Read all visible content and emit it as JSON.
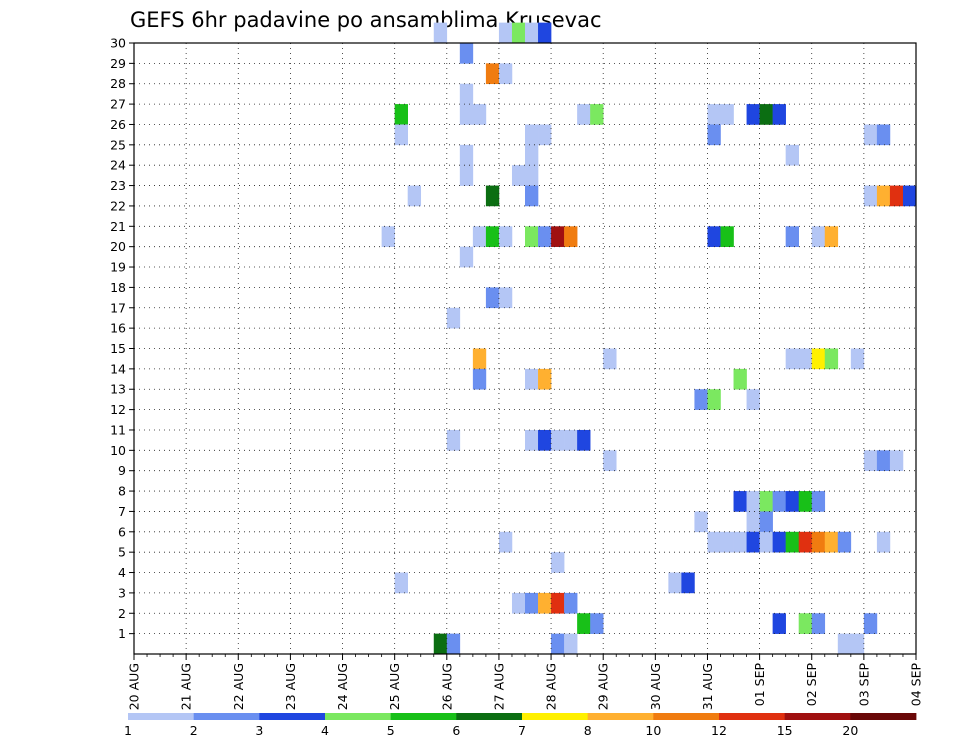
{
  "chart_data": {
    "type": "heatmap",
    "title": "GEFS 6hr padavine po ansamblima Krusevac",
    "xlabel": "",
    "ylabel": "",
    "x_tick_labels": [
      "20 AUG",
      "21 AUG",
      "22 AUG",
      "23 AUG",
      "24 AUG",
      "25 AUG",
      "26 AUG",
      "27 AUG",
      "28 AUG",
      "29 AUG",
      "30 AUG",
      "31 AUG",
      "01 SEP",
      "02 SEP",
      "03 SEP",
      "04 SEP"
    ],
    "y_tick_labels": [
      "1",
      "2",
      "3",
      "4",
      "5",
      "6",
      "7",
      "8",
      "9",
      "10",
      "11",
      "12",
      "13",
      "14",
      "15",
      "16",
      "17",
      "18",
      "19",
      "20",
      "21",
      "22",
      "23",
      "24",
      "25",
      "26",
      "27",
      "28",
      "29",
      "30"
    ],
    "time_steps_per_day": 4,
    "ensemble_members": 30,
    "grid": true,
    "colorbar": {
      "position": "bottom",
      "tick_labels": [
        "1",
        "2",
        "3",
        "4",
        "5",
        "6",
        "7",
        "8",
        "10",
        "12",
        "15",
        "20"
      ],
      "thresholds": [
        1,
        2,
        3,
        4,
        5,
        6,
        7,
        8,
        10,
        12,
        15,
        20
      ],
      "colors": [
        "#b4c6f5",
        "#6a8ff0",
        "#1f46e0",
        "#7be860",
        "#18c018",
        "#0b6e12",
        "#fff000",
        "#ffb030",
        "#f07c10",
        "#e03010",
        "#a01010",
        "#6a0808"
      ]
    },
    "cells": [
      {
        "date": "25 AUG 18Z",
        "member": 30,
        "value": 1.5
      },
      {
        "date": "27 AUG 00Z",
        "member": 30,
        "value": 1.5
      },
      {
        "date": "27 AUG 06Z",
        "member": 30,
        "value": 4.5
      },
      {
        "date": "27 AUG 12Z",
        "member": 30,
        "value": 1.5
      },
      {
        "date": "27 AUG 18Z",
        "member": 30,
        "value": 3.5
      },
      {
        "date": "26 AUG 06Z",
        "member": 29,
        "value": 2.5
      },
      {
        "date": "26 AUG 18Z",
        "member": 28,
        "value": 11
      },
      {
        "date": "27 AUG 00Z",
        "member": 28,
        "value": 1.5
      },
      {
        "date": "26 AUG 06Z",
        "member": 27,
        "value": 1.5
      },
      {
        "date": "26 AUG 06Z",
        "member": 26,
        "value": 1.5
      },
      {
        "date": "25 AUG 00Z",
        "member": 26,
        "value": 5.5
      },
      {
        "date": "26 AUG 12Z",
        "member": 26,
        "value": 1.5
      },
      {
        "date": "28 AUG 12Z",
        "member": 26,
        "value": 1.5
      },
      {
        "date": "28 AUG 18Z",
        "member": 26,
        "value": 4.5
      },
      {
        "date": "31 AUG 00Z",
        "member": 26,
        "value": 1.5
      },
      {
        "date": "31 AUG 06Z",
        "member": 26,
        "value": 1.5
      },
      {
        "date": "31 AUG 18Z",
        "member": 26,
        "value": 3.5
      },
      {
        "date": "01 SEP 00Z",
        "member": 26,
        "value": 6.5
      },
      {
        "date": "01 SEP 06Z",
        "member": 26,
        "value": 3.5
      },
      {
        "date": "25 AUG 00Z",
        "member": 25,
        "value": 1.5
      },
      {
        "date": "27 AUG 12Z",
        "member": 25,
        "value": 1.5
      },
      {
        "date": "27 AUG 18Z",
        "member": 25,
        "value": 1.5
      },
      {
        "date": "31 AUG 00Z",
        "member": 25,
        "value": 2.5
      },
      {
        "date": "03 SEP 00Z",
        "member": 25,
        "value": 1.5
      },
      {
        "date": "03 SEP 06Z",
        "member": 25,
        "value": 2.5
      },
      {
        "date": "26 AUG 06Z",
        "member": 24,
        "value": 1.5
      },
      {
        "date": "27 AUG 12Z",
        "member": 24,
        "value": 1.5
      },
      {
        "date": "01 SEP 12Z",
        "member": 24,
        "value": 1.5
      },
      {
        "date": "26 AUG 06Z",
        "member": 23,
        "value": 1.5
      },
      {
        "date": "27 AUG 06Z",
        "member": 23,
        "value": 1.5
      },
      {
        "date": "27 AUG 12Z",
        "member": 23,
        "value": 1.5
      },
      {
        "date": "25 AUG 06Z",
        "member": 22,
        "value": 1.5
      },
      {
        "date": "26 AUG 18Z",
        "member": 22,
        "value": 6.5
      },
      {
        "date": "27 AUG 12Z",
        "member": 22,
        "value": 2.5
      },
      {
        "date": "03 SEP 00Z",
        "member": 22,
        "value": 1.5
      },
      {
        "date": "03 SEP 06Z",
        "member": 22,
        "value": 9
      },
      {
        "date": "03 SEP 12Z",
        "member": 22,
        "value": 13
      },
      {
        "date": "03 SEP 18Z",
        "member": 22,
        "value": 3.5
      },
      {
        "date": "24 AUG 18Z",
        "member": 20,
        "value": 1.5
      },
      {
        "date": "26 AUG 12Z",
        "member": 20,
        "value": 1.5
      },
      {
        "date": "26 AUG 18Z",
        "member": 20,
        "value": 5.5
      },
      {
        "date": "27 AUG 00Z",
        "member": 20,
        "value": 1.5
      },
      {
        "date": "27 AUG 12Z",
        "member": 20,
        "value": 4.5
      },
      {
        "date": "27 AUG 18Z",
        "member": 20,
        "value": 2.5
      },
      {
        "date": "28 AUG 00Z",
        "member": 20,
        "value": 17
      },
      {
        "date": "28 AUG 06Z",
        "member": 20,
        "value": 11
      },
      {
        "date": "31 AUG 00Z",
        "member": 20,
        "value": 3.5
      },
      {
        "date": "31 AUG 06Z",
        "member": 20,
        "value": 5.5
      },
      {
        "date": "01 SEP 12Z",
        "member": 20,
        "value": 2.5
      },
      {
        "date": "02 SEP 00Z",
        "member": 20,
        "value": 1.5
      },
      {
        "date": "02 SEP 06Z",
        "member": 20,
        "value": 9
      },
      {
        "date": "26 AUG 06Z",
        "member": 19,
        "value": 1.5
      },
      {
        "date": "26 AUG 00Z",
        "member": 16,
        "value": 1.5
      },
      {
        "date": "26 AUG 18Z",
        "member": 17,
        "value": 2.5
      },
      {
        "date": "27 AUG 00Z",
        "member": 17,
        "value": 1.5
      },
      {
        "date": "26 AUG 12Z",
        "member": 14,
        "value": 9
      },
      {
        "date": "26 AUG 12Z",
        "member": 13,
        "value": 2.5
      },
      {
        "date": "27 AUG 12Z",
        "member": 13,
        "value": 1.5
      },
      {
        "date": "27 AUG 18Z",
        "member": 13,
        "value": 9
      },
      {
        "date": "29 AUG 00Z",
        "member": 14,
        "value": 1.5
      },
      {
        "date": "01 SEP 12Z",
        "member": 14,
        "value": 1.5
      },
      {
        "date": "01 SEP 18Z",
        "member": 14,
        "value": 1.5
      },
      {
        "date": "02 SEP 00Z",
        "member": 14,
        "value": 7.5
      },
      {
        "date": "02 SEP 06Z",
        "member": 14,
        "value": 4.5
      },
      {
        "date": "02 SEP 18Z",
        "member": 14,
        "value": 1.5
      },
      {
        "date": "31 AUG 12Z",
        "member": 13,
        "value": 4.5
      },
      {
        "date": "30 AUG 18Z",
        "member": 12,
        "value": 2.5
      },
      {
        "date": "31 AUG 00Z",
        "member": 12,
        "value": 4.5
      },
      {
        "date": "31 AUG 18Z",
        "member": 12,
        "value": 1.5
      },
      {
        "date": "26 AUG 00Z",
        "member": 10,
        "value": 1.5
      },
      {
        "date": "27 AUG 12Z",
        "member": 10,
        "value": 1.5
      },
      {
        "date": "27 AUG 18Z",
        "member": 10,
        "value": 3.5
      },
      {
        "date": "28 AUG 00Z",
        "member": 10,
        "value": 1.5
      },
      {
        "date": "28 AUG 06Z",
        "member": 10,
        "value": 1.5
      },
      {
        "date": "28 AUG 12Z",
        "member": 10,
        "value": 3.5
      },
      {
        "date": "29 AUG 00Z",
        "member": 9,
        "value": 1.5
      },
      {
        "date": "03 SEP 00Z",
        "member": 9,
        "value": 1.5
      },
      {
        "date": "03 SEP 06Z",
        "member": 9,
        "value": 2.5
      },
      {
        "date": "03 SEP 12Z",
        "member": 9,
        "value": 1.5
      },
      {
        "date": "31 AUG 12Z",
        "member": 7,
        "value": 3.5
      },
      {
        "date": "31 AUG 18Z",
        "member": 7,
        "value": 1.5
      },
      {
        "date": "01 SEP 00Z",
        "member": 7,
        "value": 4.5
      },
      {
        "date": "01 SEP 06Z",
        "member": 7,
        "value": 2.5
      },
      {
        "date": "01 SEP 12Z",
        "member": 7,
        "value": 3.5
      },
      {
        "date": "01 SEP 18Z",
        "member": 7,
        "value": 5.5
      },
      {
        "date": "02 SEP 00Z",
        "member": 7,
        "value": 2.5
      },
      {
        "date": "30 AUG 18Z",
        "member": 6,
        "value": 1.5
      },
      {
        "date": "31 AUG 18Z",
        "member": 6,
        "value": 1.5
      },
      {
        "date": "01 SEP 00Z",
        "member": 6,
        "value": 2.5
      },
      {
        "date": "27 AUG 00Z",
        "member": 5,
        "value": 1.5
      },
      {
        "date": "31 AUG 00Z",
        "member": 5,
        "value": 1.5
      },
      {
        "date": "31 AUG 06Z",
        "member": 5,
        "value": 1.5
      },
      {
        "date": "31 AUG 12Z",
        "member": 5,
        "value": 1.5
      },
      {
        "date": "31 AUG 18Z",
        "member": 5,
        "value": 3.5
      },
      {
        "date": "01 SEP 00Z",
        "member": 5,
        "value": 1.5
      },
      {
        "date": "01 SEP 06Z",
        "member": 5,
        "value": 3.5
      },
      {
        "date": "01 SEP 12Z",
        "member": 5,
        "value": 5.5
      },
      {
        "date": "01 SEP 18Z",
        "member": 5,
        "value": 13
      },
      {
        "date": "02 SEP 00Z",
        "member": 5,
        "value": 11
      },
      {
        "date": "02 SEP 06Z",
        "member": 5,
        "value": 9
      },
      {
        "date": "02 SEP 12Z",
        "member": 5,
        "value": 2.5
      },
      {
        "date": "03 SEP 06Z",
        "member": 5,
        "value": 1.5
      },
      {
        "date": "28 AUG 00Z",
        "member": 4,
        "value": 1.5
      },
      {
        "date": "25 AUG 00Z",
        "member": 3,
        "value": 1.5
      },
      {
        "date": "30 AUG 06Z",
        "member": 3,
        "value": 1.5
      },
      {
        "date": "30 AUG 12Z",
        "member": 3,
        "value": 3.5
      },
      {
        "date": "27 AUG 06Z",
        "member": 2,
        "value": 1.5
      },
      {
        "date": "27 AUG 12Z",
        "member": 2,
        "value": 2.5
      },
      {
        "date": "27 AUG 18Z",
        "member": 2,
        "value": 9
      },
      {
        "date": "28 AUG 00Z",
        "member": 2,
        "value": 13
      },
      {
        "date": "28 AUG 06Z",
        "member": 2,
        "value": 2.5
      },
      {
        "date": "28 AUG 12Z",
        "member": 1,
        "value": 5.5
      },
      {
        "date": "28 AUG 18Z",
        "member": 1,
        "value": 2.5
      },
      {
        "date": "01 SEP 06Z",
        "member": 1,
        "value": 3.5
      },
      {
        "date": "01 SEP 18Z",
        "member": 1,
        "value": 4.5
      },
      {
        "date": "02 SEP 00Z",
        "member": 1,
        "value": 2.5
      },
      {
        "date": "03 SEP 00Z",
        "member": 1,
        "value": 2.5
      },
      {
        "date": "25 AUG 18Z",
        "member": 0,
        "value": 6.5
      },
      {
        "date": "26 AUG 00Z",
        "member": 0,
        "value": 2.5
      },
      {
        "date": "28 AUG 00Z",
        "member": 0,
        "value": 2.5
      },
      {
        "date": "28 AUG 06Z",
        "member": 0,
        "value": 1.5
      },
      {
        "date": "02 SEP 12Z",
        "member": 0,
        "value": 1.5
      },
      {
        "date": "02 SEP 18Z",
        "member": 0,
        "value": 1.5
      }
    ]
  }
}
